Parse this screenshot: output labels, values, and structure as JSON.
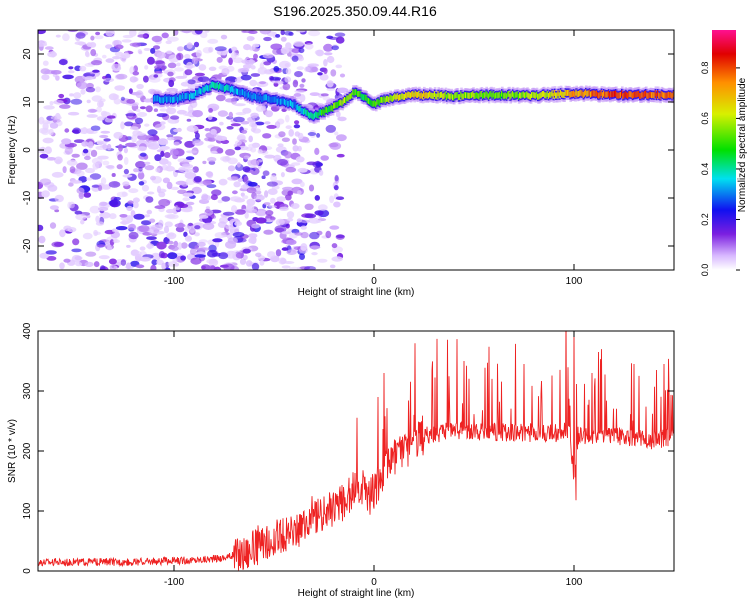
{
  "title": "S196.2025.350.09.44.R16",
  "chart_data": [
    {
      "type": "heatmap",
      "name": "spectrogram",
      "xlabel": "Height of straight line (km)",
      "ylabel": "Frequency (Hz)",
      "xlim": [
        -168,
        150
      ],
      "ylim": [
        -25,
        25
      ],
      "xticks": [
        -100,
        0,
        100
      ],
      "xtick_labels": [
        "-100",
        "0",
        "100"
      ],
      "yticks": [
        -20,
        -10,
        0,
        10,
        20
      ],
      "ytick_labels": [
        "-20",
        "-10",
        "0",
        "10",
        "20"
      ],
      "tone_track": {
        "x": [
          -110,
          -100,
          -90,
          -80,
          -70,
          -60,
          -50,
          -40,
          -35,
          -30,
          -25,
          -20,
          -15,
          -10,
          -5,
          0,
          5,
          10,
          20,
          40,
          60,
          80,
          100,
          120,
          150
        ],
        "freq": [
          10.5,
          10.5,
          11.5,
          13.5,
          12.5,
          11,
          10.5,
          9.5,
          8,
          7,
          8,
          9,
          10,
          12,
          11,
          9.5,
          10.5,
          11,
          11.5,
          11.2,
          11.5,
          11.3,
          11.8,
          11.5,
          11.5
        ],
        "amp": [
          0.3,
          0.35,
          0.35,
          0.4,
          0.35,
          0.3,
          0.3,
          0.35,
          0.4,
          0.45,
          0.5,
          0.55,
          0.6,
          0.55,
          0.5,
          0.55,
          0.6,
          0.65,
          0.7,
          0.6,
          0.55,
          0.6,
          0.75,
          0.85,
          0.8
        ]
      },
      "noise_region_x": [
        -168,
        -30
      ],
      "colorbar": {
        "label": "Normalized spectral amplitude",
        "range": [
          0,
          0.95
        ],
        "ticks": [
          0.0,
          0.2,
          0.4,
          0.6,
          0.8
        ],
        "tick_labels": [
          "0.0",
          "0.2",
          "0.4",
          "0.6",
          "0.8"
        ],
        "colors": [
          "#ffffff",
          "#7b1fe0",
          "#1010f0",
          "#00e0f0",
          "#00e000",
          "#f0f000",
          "#ff8000",
          "#e00000",
          "#ff1090"
        ]
      }
    },
    {
      "type": "line",
      "name": "snr",
      "color": "#ee2222",
      "xlabel": "Height of straight line (km)",
      "ylabel": "SNR (10 * v/v)",
      "xlim": [
        -168,
        150
      ],
      "ylim": [
        0,
        400
      ],
      "xticks": [
        -100,
        0,
        100
      ],
      "xtick_labels": [
        "-100",
        "0",
        "100"
      ],
      "yticks": [
        0,
        100,
        200,
        300,
        400
      ],
      "ytick_labels": [
        "0",
        "100",
        "200",
        "300",
        "400"
      ],
      "baseline": {
        "x": [
          -168,
          -120,
          -90,
          -75,
          -65,
          -55,
          -45,
          -35,
          -25,
          -15,
          -8,
          -3,
          3,
          8,
          15,
          25,
          40,
          60,
          80,
          98,
          100,
          102,
          120,
          140,
          150
        ],
        "y": [
          15,
          15,
          18,
          22,
          30,
          45,
          60,
          75,
          95,
          115,
          140,
          120,
          150,
          185,
          200,
          225,
          235,
          232,
          230,
          230,
          150,
          225,
          225,
          218,
          225
        ]
      },
      "peaks": [
        {
          "x": 2,
          "y": 290
        },
        {
          "x": 5,
          "y": 330
        },
        {
          "x": 45,
          "y": 350
        },
        {
          "x": 75,
          "y": 345
        },
        {
          "x": 100,
          "y": 405
        },
        {
          "x": 130,
          "y": 345
        },
        {
          "x": 145,
          "y": 345
        }
      ],
      "dip": {
        "x": 101,
        "y": 118
      }
    }
  ]
}
